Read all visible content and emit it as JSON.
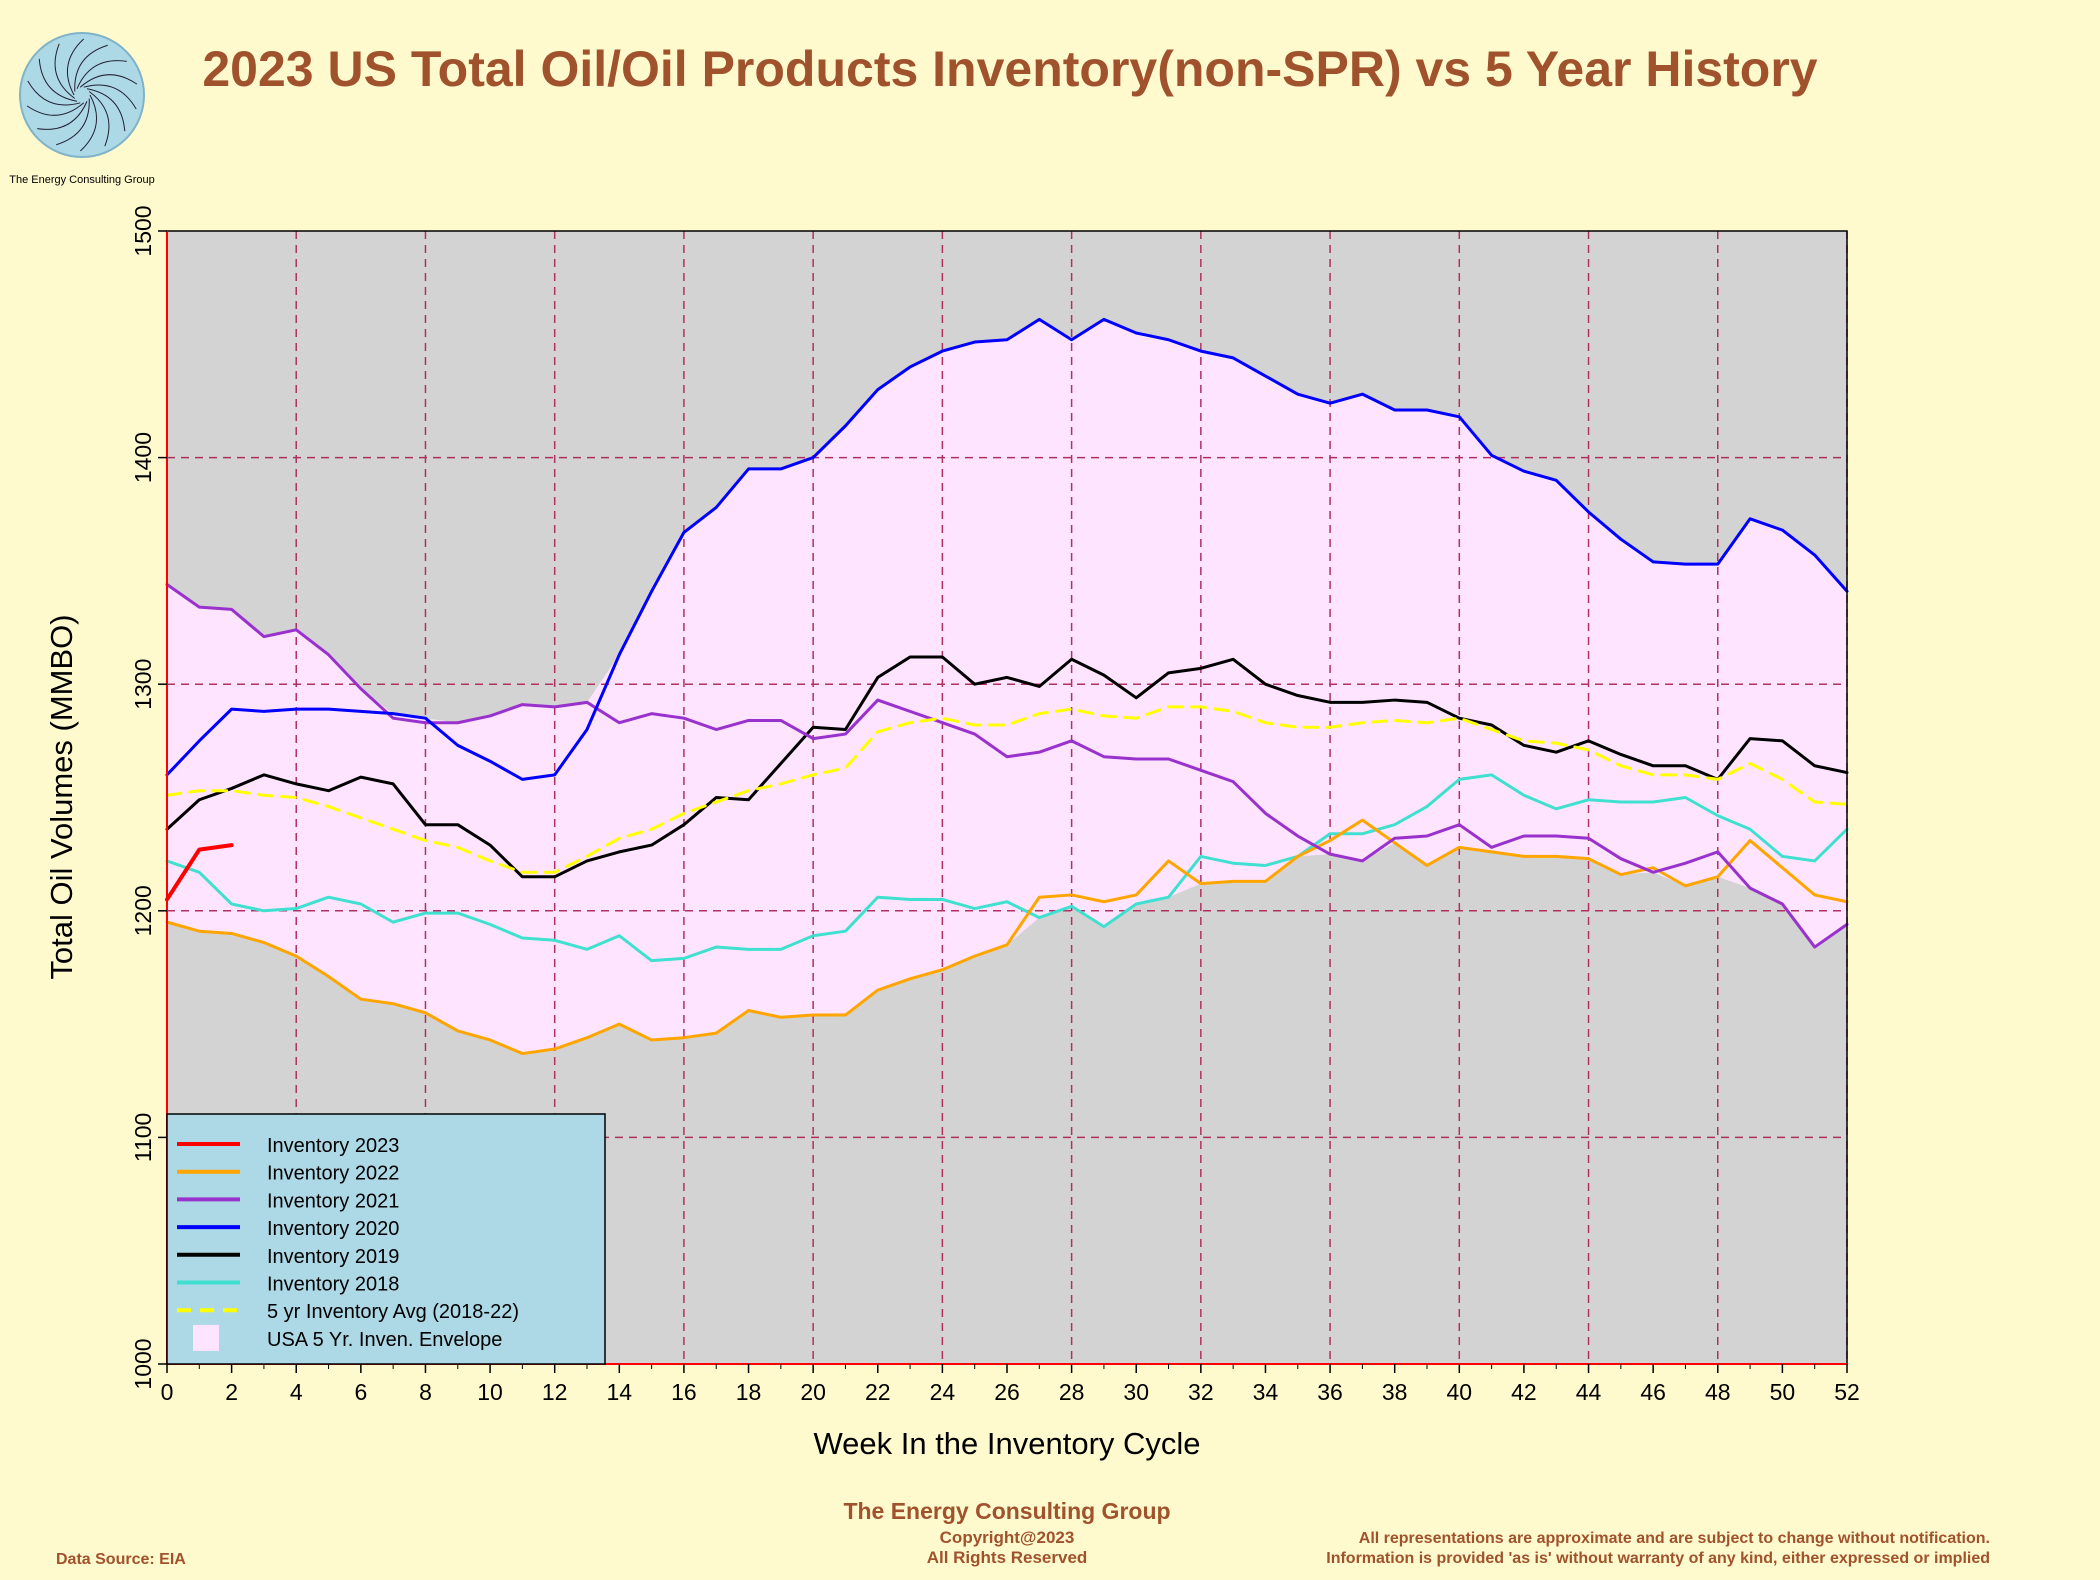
{
  "header": {
    "title": "2023 US Total Oil/Oil Products  Inventory(non-SPR) vs 5 Year History",
    "logo_caption": "The Energy Consulting Group"
  },
  "footer": {
    "company": "The Energy Consulting Group",
    "copyright": "Copyright@2023",
    "rights": "All Rights Reserved",
    "disclaimer1": "All representations are approximate and are subject to change without notification.",
    "disclaimer2": "Information is provided 'as is' without warranty of any kind, either expressed or implied",
    "source": "Data Source: EIA"
  },
  "colors": {
    "background": "#fffacd",
    "plot_background": "#d3d3d3",
    "envelope": "#ffe4ff",
    "grid": "#b03060",
    "title": "#a0522d",
    "legend_bg": "#add8e6"
  },
  "chart_data": {
    "type": "line",
    "xlabel": "Week In the Inventory Cycle",
    "ylabel": "Total Oil Volumes (MMBO)",
    "xlim": [
      0,
      52
    ],
    "ylim": [
      1000,
      1500
    ],
    "xticks": [
      0,
      2,
      4,
      6,
      8,
      10,
      12,
      14,
      16,
      18,
      20,
      22,
      24,
      26,
      28,
      30,
      32,
      34,
      36,
      38,
      40,
      42,
      44,
      46,
      48,
      50,
      52
    ],
    "yticks": [
      1000,
      1100,
      1200,
      1300,
      1400,
      1500
    ],
    "grid": true,
    "legend_position": "bottom-left",
    "series": [
      {
        "name": "Inventory 2023",
        "color": "#ff0000",
        "width": 4,
        "values": [
          1205,
          1227,
          1229
        ]
      },
      {
        "name": "Inventory 2022",
        "color": "#ffa500",
        "width": 3,
        "values": [
          1195,
          1191,
          1190,
          1186,
          1180,
          1171,
          1161,
          1159,
          1155,
          1147,
          1143,
          1137,
          1139,
          1144,
          1150,
          1143,
          1144,
          1146,
          1156,
          1153,
          1154,
          1154,
          1165,
          1170,
          1174,
          1180,
          1185,
          1206,
          1207,
          1204,
          1207,
          1222,
          1212,
          1213,
          1213,
          1224,
          1231,
          1240,
          1230,
          1220,
          1228,
          1226,
          1224,
          1224,
          1223,
          1216,
          1219,
          1211,
          1215,
          1231,
          1219,
          1207,
          1204
        ]
      },
      {
        "name": "Inventory 2021",
        "color": "#9932cc",
        "width": 3,
        "values": [
          1344,
          1334,
          1333,
          1321,
          1324,
          1313,
          1298,
          1285,
          1283,
          1283,
          1286,
          1291,
          1290,
          1292,
          1283,
          1287,
          1285,
          1280,
          1284,
          1284,
          1276,
          1278,
          1293,
          1288,
          1283,
          1278,
          1268,
          1270,
          1275,
          1268,
          1267,
          1267,
          1262,
          1257,
          1243,
          1233,
          1225,
          1222,
          1232,
          1233,
          1238,
          1228,
          1233,
          1233,
          1232,
          1223,
          1217,
          1221,
          1226,
          1210,
          1203,
          1184,
          1194
        ]
      },
      {
        "name": "Inventory 2020",
        "color": "#0000ff",
        "width": 3,
        "values": [
          1260,
          1275,
          1289,
          1288,
          1289,
          1289,
          1288,
          1287,
          1285,
          1273,
          1266,
          1258,
          1260,
          1280,
          1313,
          1341,
          1367,
          1378,
          1395,
          1395,
          1400,
          1414,
          1430,
          1440,
          1447,
          1451,
          1452,
          1461,
          1452,
          1461,
          1455,
          1452,
          1447,
          1444,
          1436,
          1428,
          1424,
          1428,
          1421,
          1421,
          1418,
          1401,
          1394,
          1390,
          1376,
          1364,
          1354,
          1353,
          1353,
          1373,
          1368,
          1357,
          1341
        ]
      },
      {
        "name": "Inventory 2019",
        "color": "#000000",
        "width": 3,
        "values": [
          1236,
          1249,
          1254,
          1260,
          1256,
          1253,
          1259,
          1256,
          1238,
          1238,
          1229,
          1215,
          1215,
          1222,
          1226,
          1229,
          1238,
          1250,
          1249,
          1265,
          1281,
          1280,
          1303,
          1312,
          1312,
          1300,
          1303,
          1299,
          1311,
          1304,
          1294,
          1305,
          1307,
          1311,
          1300,
          1295,
          1292,
          1292,
          1293,
          1292,
          1285,
          1282,
          1273,
          1270,
          1275,
          1269,
          1264,
          1264,
          1258,
          1276,
          1275,
          1264,
          1261
        ]
      },
      {
        "name": "Inventory 2018",
        "color": "#40e0d0",
        "width": 3,
        "values": [
          1222,
          1217,
          1203,
          1200,
          1201,
          1206,
          1203,
          1195,
          1199,
          1199,
          1194,
          1188,
          1187,
          1183,
          1189,
          1178,
          1179,
          1184,
          1183,
          1183,
          1189,
          1191,
          1206,
          1205,
          1205,
          1201,
          1204,
          1197,
          1202,
          1193,
          1203,
          1206,
          1224,
          1221,
          1220,
          1224,
          1234,
          1234,
          1238,
          1246,
          1258,
          1260,
          1251,
          1245,
          1249,
          1248,
          1248,
          1250,
          1242,
          1236,
          1224,
          1222,
          1236
        ]
      },
      {
        "name": "5 yr Inventory Avg (2018-22)",
        "color": "#ffff00",
        "width": 3,
        "dashed": true,
        "values": [
          1251,
          1253,
          1253,
          1251,
          1250,
          1246,
          1241,
          1236,
          1231,
          1228,
          1222,
          1217,
          1217,
          1224,
          1232,
          1236,
          1243,
          1248,
          1253,
          1256,
          1260,
          1263,
          1279,
          1283,
          1285,
          1282,
          1282,
          1287,
          1289,
          1286,
          1285,
          1290,
          1290,
          1288,
          1283,
          1281,
          1281,
          1283,
          1284,
          1283,
          1285,
          1280,
          1275,
          1274,
          1271,
          1264,
          1260,
          1260,
          1258,
          1265,
          1258,
          1248,
          1247
        ]
      }
    ],
    "envelope_name": "USA 5 Yr. Inven. Envelope"
  }
}
